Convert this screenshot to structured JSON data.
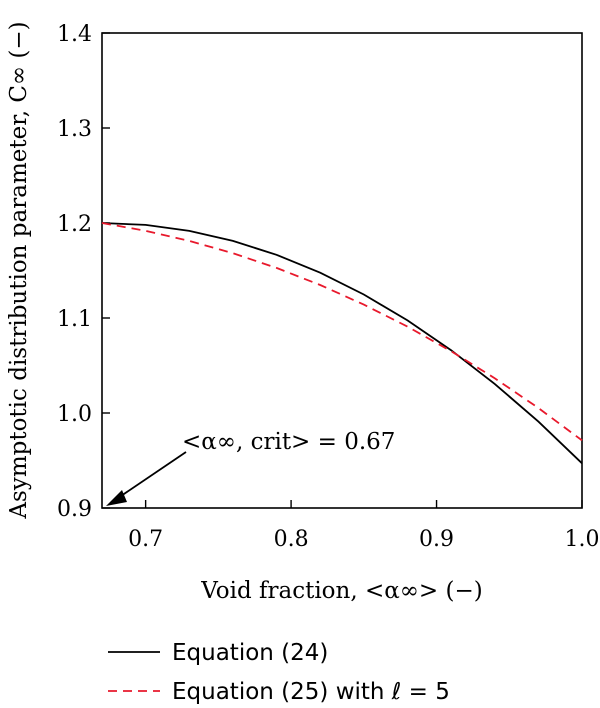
{
  "chart_data": {
    "type": "line",
    "xlabel": "Void fraction, <α∞> (−)",
    "ylabel": "Asymptotic distribution parameter, C∞ (−)",
    "xlim": [
      0.67,
      1.0
    ],
    "ylim": [
      0.9,
      1.4
    ],
    "xticks": [
      0.7,
      0.8,
      0.9,
      1.0
    ],
    "xtick_labels": [
      "0.7",
      "0.8",
      "0.9",
      "1.0"
    ],
    "yticks": [
      0.9,
      1.0,
      1.1,
      1.2,
      1.3,
      1.4
    ],
    "ytick_labels": [
      "0.9",
      "1.0",
      "1.1",
      "1.2",
      "1.3",
      "1.4"
    ],
    "grid": false,
    "legend_position": "bottom",
    "series": [
      {
        "name": "Equation (24)",
        "color": "#000000",
        "style": "solid",
        "x": [
          0.67,
          0.7,
          0.73,
          0.76,
          0.79,
          0.82,
          0.85,
          0.88,
          0.91,
          0.94,
          0.97,
          1.0
        ],
        "y": [
          1.2,
          1.198,
          1.1917,
          1.1812,
          1.1665,
          1.1477,
          1.1247,
          1.0975,
          1.0661,
          1.0306,
          0.9909,
          0.9471
        ]
      },
      {
        "name": "Equation (25) with ℓ = 5",
        "color": "#e8192c",
        "style": "dashed",
        "x": [
          0.67,
          0.7,
          0.73,
          0.76,
          0.79,
          0.82,
          0.85,
          0.88,
          0.91,
          0.94,
          0.97,
          1.0
        ],
        "y": [
          1.2,
          1.1918,
          1.1812,
          1.1682,
          1.1527,
          1.1347,
          1.1141,
          1.0909,
          1.0651,
          1.0366,
          1.0053,
          0.9712
        ]
      }
    ],
    "annotation": {
      "label": "<α∞, crit> = 0.67",
      "x": 0.67,
      "y": 0.9
    }
  }
}
